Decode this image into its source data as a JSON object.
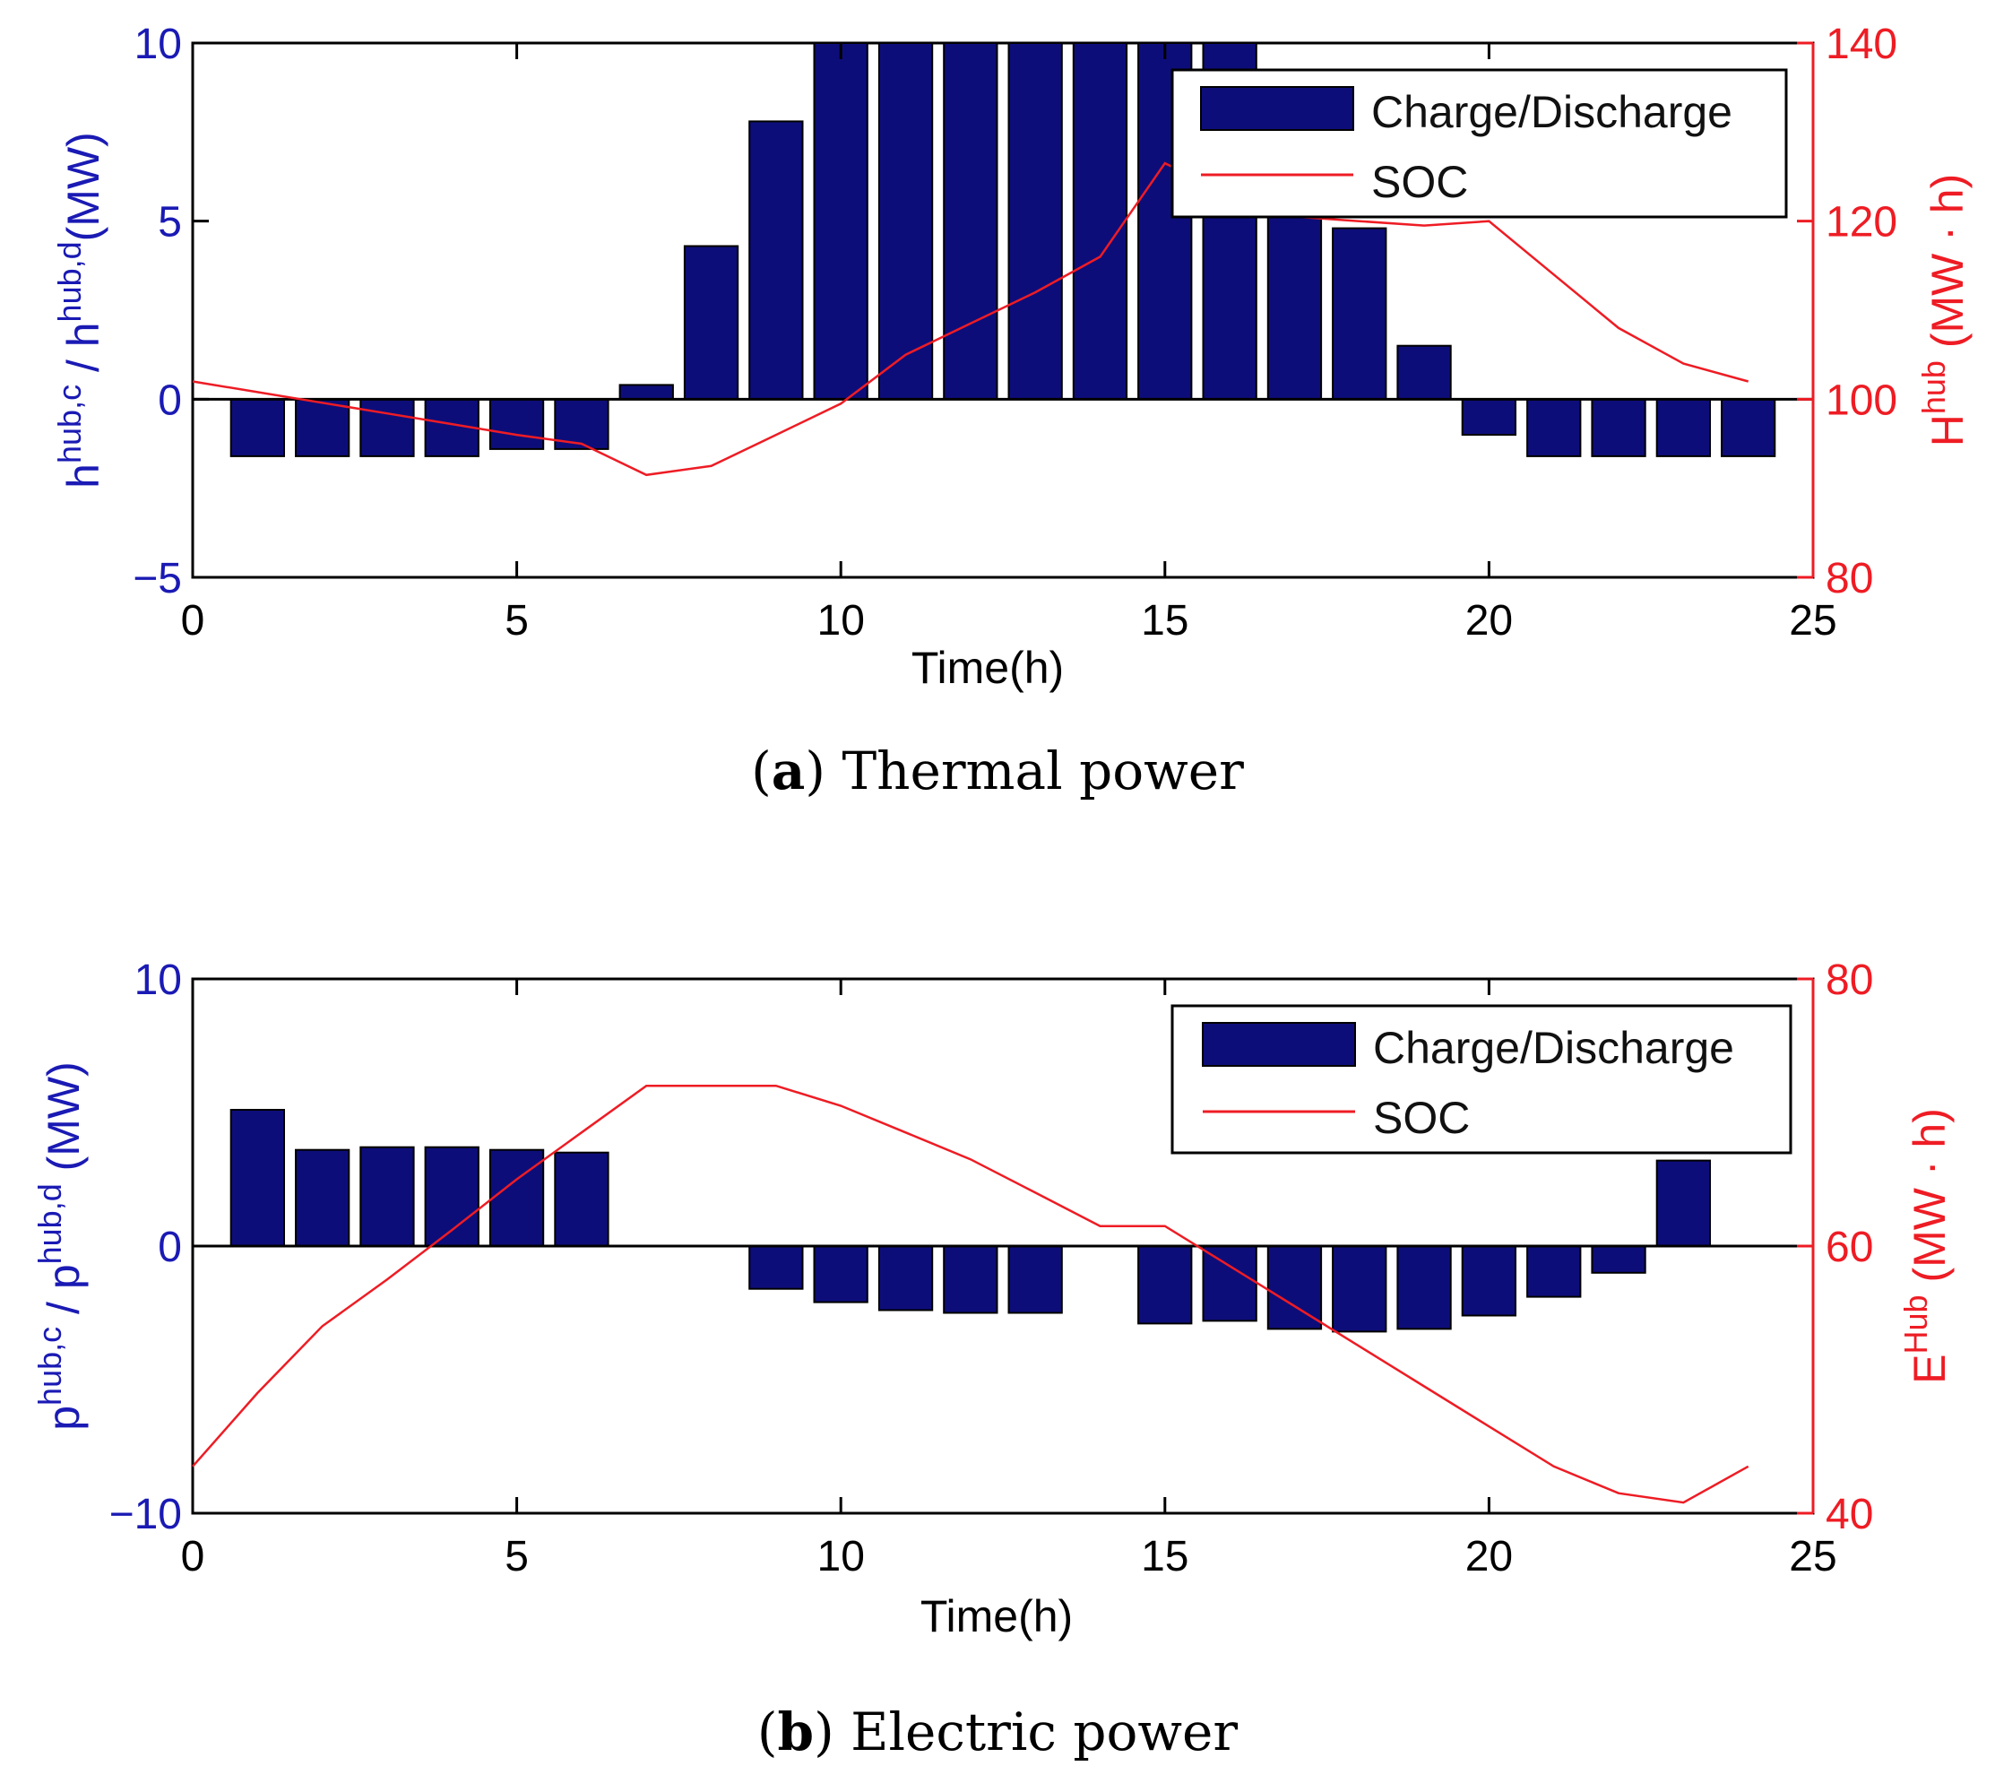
{
  "colors": {
    "bar": "#0d0d7a",
    "soc": "#ee1c24",
    "left_axis": "#1a1ab4",
    "right_axis": "#ee1c24"
  },
  "chart_data": [
    {
      "id": "a",
      "type": "bar",
      "caption_letter": "a",
      "caption_text": "Thermal power",
      "xlabel": "Time(h)",
      "ylabel_left": "h^{hub,c} / h^{hub,d}(MW)",
      "ylabel_left_parts": {
        "s1": "h",
        "s1sup": "hub,c",
        "mid": " / h",
        "s2sup": "hub,d",
        "end": "(MW)"
      },
      "ylabel_right": "H^{hub} (MW·h)",
      "ylabel_right_parts": {
        "base": "H",
        "sup": "hub",
        "end": " (MW · h)"
      },
      "xlim": [
        0,
        25
      ],
      "xticks": [
        "0",
        "5",
        "10",
        "15",
        "20",
        "25"
      ],
      "ylim_left": [
        -5,
        10
      ],
      "yticks_left": [
        "−5",
        "0",
        "5",
        "10"
      ],
      "ylim_right": [
        80,
        140
      ],
      "yticks_right": [
        "80",
        "100",
        "120",
        "140"
      ],
      "legend": {
        "bar_label": "Charge/Discharge",
        "line_label": "SOC",
        "placement": "top-right"
      },
      "series": [
        {
          "name": "Charge/Discharge",
          "axis": "left",
          "x": [
            1,
            2,
            3,
            4,
            5,
            6,
            7,
            8,
            9,
            10,
            11,
            12,
            13,
            14,
            15,
            16,
            17,
            18,
            19,
            20,
            21,
            22,
            23,
            24
          ],
          "values": [
            -1.6,
            -1.6,
            -1.6,
            -1.6,
            -1.4,
            -1.4,
            0.4,
            4.3,
            7.8,
            10,
            10,
            10,
            10,
            10,
            10,
            10,
            5.5,
            4.8,
            1.5,
            -1.0,
            -1.6,
            -1.6,
            -1.6,
            -1.6
          ]
        },
        {
          "name": "SOC",
          "axis": "right",
          "x": [
            0,
            1,
            2,
            3,
            4,
            5,
            6,
            7,
            8,
            9,
            10,
            11,
            12,
            13,
            14,
            15,
            16,
            17,
            18,
            19,
            20,
            21,
            22,
            23,
            24
          ],
          "values": [
            102,
            100.8,
            99.6,
            98.4,
            97.2,
            96,
            95,
            91.5,
            92.5,
            96,
            99.5,
            105,
            108.5,
            112,
            116,
            126.5,
            123,
            120.5,
            120,
            119.5,
            120,
            114,
            108,
            104,
            102
          ]
        }
      ]
    },
    {
      "id": "b",
      "type": "bar",
      "caption_letter": "b",
      "caption_text": "Electric power",
      "xlabel": "Time(h)",
      "ylabel_left": "p^{hub,c} / p^{hub,d} (MW)",
      "ylabel_left_parts": {
        "s1": "p",
        "s1sup": "hub,c",
        "mid": " / p",
        "s2sup": "hub,d",
        "end": " (MW)"
      },
      "ylabel_right": "E^{Hub} (MW·h)",
      "ylabel_right_parts": {
        "base": "E",
        "sup": "Hub",
        "end": " (MW · h)"
      },
      "xlim": [
        0,
        25
      ],
      "xticks": [
        "0",
        "5",
        "10",
        "15",
        "20",
        "25"
      ],
      "ylim_left": [
        -10,
        10
      ],
      "yticks_left": [
        "−10",
        "0",
        "10"
      ],
      "ylim_right": [
        40,
        80
      ],
      "yticks_right": [
        "40",
        "60",
        "80"
      ],
      "legend": {
        "bar_label": "Charge/Discharge",
        "line_label": "SOC",
        "placement": "top-right"
      },
      "series": [
        {
          "name": "Charge/Discharge",
          "axis": "left",
          "x": [
            1,
            2,
            3,
            4,
            5,
            6,
            7,
            8,
            9,
            10,
            11,
            12,
            13,
            14,
            15,
            16,
            17,
            18,
            19,
            20,
            21,
            22,
            23,
            24
          ],
          "values": [
            5.1,
            3.6,
            3.7,
            3.7,
            3.6,
            3.5,
            0,
            0,
            -1.6,
            -2.1,
            -2.4,
            -2.5,
            -2.5,
            0,
            -2.9,
            -2.8,
            -3.1,
            -3.2,
            -3.1,
            -2.6,
            -1.9,
            -1.0,
            3.2,
            0
          ]
        },
        {
          "name": "SOC",
          "axis": "right",
          "x": [
            0,
            1,
            2,
            3,
            4,
            5,
            6,
            7,
            8,
            9,
            10,
            11,
            12,
            13,
            14,
            15,
            16,
            17,
            18,
            19,
            20,
            21,
            22,
            23,
            24
          ],
          "values": [
            43.5,
            49,
            54,
            57.5,
            61.2,
            65,
            68.5,
            72,
            72,
            72,
            70.5,
            68.5,
            66.5,
            64,
            61.5,
            61.5,
            58.5,
            55.5,
            52.5,
            49.5,
            46.5,
            43.5,
            41.5,
            40.8,
            43.5
          ]
        }
      ]
    }
  ]
}
